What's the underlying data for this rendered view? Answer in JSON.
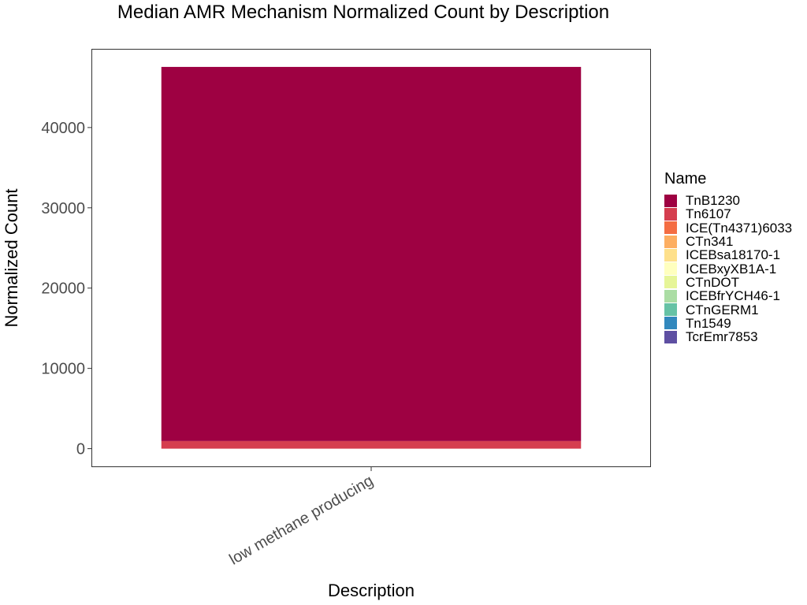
{
  "chart_data": {
    "type": "bar",
    "stacked": true,
    "title": "Median AMR Mechanism Normalized Count by Description",
    "xlabel": "Description",
    "ylabel": "Normalized Count",
    "categories": [
      "low methane producing"
    ],
    "ylim": [
      -2300,
      49800
    ],
    "yticks": [
      0,
      10000,
      20000,
      30000,
      40000
    ],
    "grid": false,
    "legend_title": "Name",
    "legend_position": "right",
    "series": [
      {
        "name": "TnB1230",
        "values": [
          46600
        ],
        "color": "#9E0142"
      },
      {
        "name": "Tn6107",
        "values": [
          950
        ],
        "color": "#D53E4F"
      },
      {
        "name": "ICE(Tn4371)6033",
        "values": [
          0
        ],
        "color": "#F46D43"
      },
      {
        "name": "CTn341",
        "values": [
          0
        ],
        "color": "#FDAE61"
      },
      {
        "name": "ICEBsa18170-1",
        "values": [
          0
        ],
        "color": "#FEE08B"
      },
      {
        "name": "ICEBxyXB1A-1",
        "values": [
          0
        ],
        "color": "#FFFFBF"
      },
      {
        "name": "CTnDOT",
        "values": [
          0
        ],
        "color": "#E6F598"
      },
      {
        "name": "ICEBfrYCH46-1",
        "values": [
          0
        ],
        "color": "#ABDDA4"
      },
      {
        "name": "CTnGERM1",
        "values": [
          0
        ],
        "color": "#66C2A5"
      },
      {
        "name": "Tn1549",
        "values": [
          0
        ],
        "color": "#3288BD"
      },
      {
        "name": "TcrEmr7853",
        "values": [
          0
        ],
        "color": "#5E4FA2"
      }
    ]
  }
}
